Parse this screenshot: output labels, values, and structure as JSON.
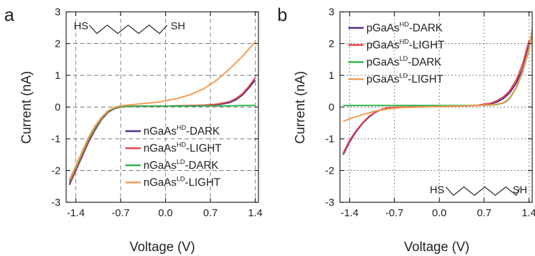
{
  "panels": [
    {
      "letter": "a",
      "molecule": {
        "left": "HS",
        "right": "SH"
      },
      "chart_data": {
        "type": "line",
        "xlabel": "Voltage (V)",
        "ylabel": "Current (nA)",
        "xlim": [
          -1.55,
          1.45
        ],
        "ylim": [
          -3,
          3
        ],
        "xticks": [
          -1.4,
          -0.7,
          0.0,
          0.7,
          1.4
        ],
        "xtick_labels": [
          "-1.4",
          "-0.7",
          "0.0",
          "0.7",
          "1.4"
        ],
        "yticks": [
          -3,
          -2,
          -1,
          0,
          1,
          2,
          3
        ],
        "ytick_labels": [
          "-3",
          "-2",
          "-1",
          "0",
          "1",
          "2",
          "3"
        ],
        "grid": "dashed at ticks",
        "legend_position": "bottom-right",
        "series": [
          {
            "name": "nGaAsHD-DARK",
            "base": "nGaAs",
            "sup": "HD",
            "tail": "-DARK",
            "color": "#4b2c8c",
            "x": [
              -1.5,
              -1.4,
              -1.3,
              -1.2,
              -1.1,
              -1.0,
              -0.9,
              -0.8,
              -0.7,
              -0.6,
              -0.4,
              -0.2,
              0.0,
              0.2,
              0.4,
              0.6,
              0.8,
              1.0,
              1.1,
              1.2,
              1.3,
              1.4
            ],
            "y": [
              -2.45,
              -2.0,
              -1.55,
              -1.1,
              -0.72,
              -0.4,
              -0.17,
              -0.05,
              0.0,
              0.02,
              0.03,
              0.03,
              0.03,
              0.04,
              0.04,
              0.05,
              0.07,
              0.14,
              0.23,
              0.38,
              0.6,
              0.85
            ]
          },
          {
            "name": "nGaAsHD-LIGHT",
            "base": "nGaAs",
            "sup": "HD",
            "tail": "-LIGHT",
            "color": "#e8454a",
            "x": [
              -1.5,
              -1.4,
              -1.3,
              -1.2,
              -1.1,
              -1.0,
              -0.9,
              -0.8,
              -0.7,
              -0.6,
              -0.4,
              -0.2,
              0.0,
              0.2,
              0.4,
              0.6,
              0.8,
              1.0,
              1.1,
              1.2,
              1.3,
              1.4
            ],
            "y": [
              -2.4,
              -1.95,
              -1.5,
              -1.05,
              -0.68,
              -0.38,
              -0.15,
              -0.04,
              0.0,
              0.02,
              0.03,
              0.03,
              0.03,
              0.04,
              0.05,
              0.06,
              0.09,
              0.17,
              0.27,
              0.42,
              0.65,
              0.92
            ]
          },
          {
            "name": "nGaAsLD-DARK",
            "base": "nGaAs",
            "sup": "LD",
            "tail": "-DARK",
            "color": "#2eb34a",
            "x": [
              -1.5,
              -1.4,
              -1.3,
              -1.2,
              -1.1,
              -1.0,
              -0.9,
              -0.8,
              -0.7,
              -0.6,
              -0.4,
              -0.2,
              0.0,
              0.2,
              0.4,
              0.6,
              0.8,
              1.0,
              1.2,
              1.4
            ],
            "y": [
              -2.35,
              -1.9,
              -1.45,
              -1.0,
              -0.65,
              -0.36,
              -0.14,
              -0.03,
              0.01,
              0.02,
              0.03,
              0.03,
              0.03,
              0.03,
              0.03,
              0.04,
              0.04,
              0.04,
              0.05,
              0.05
            ]
          },
          {
            "name": "nGaAsLD-LIGHT",
            "base": "nGaAs",
            "sup": "LD",
            "tail": "-LIGHT",
            "color": "#f49a55",
            "x": [
              -1.5,
              -1.4,
              -1.3,
              -1.2,
              -1.1,
              -1.0,
              -0.9,
              -0.8,
              -0.7,
              -0.5,
              -0.3,
              -0.1,
              0.0,
              0.2,
              0.4,
              0.6,
              0.8,
              1.0,
              1.2,
              1.4
            ],
            "y": [
              -2.3,
              -1.85,
              -1.4,
              -0.95,
              -0.6,
              -0.32,
              -0.12,
              -0.01,
              0.04,
              0.08,
              0.12,
              0.16,
              0.2,
              0.28,
              0.4,
              0.58,
              0.85,
              1.2,
              1.6,
              2.05
            ]
          }
        ]
      }
    },
    {
      "letter": "b",
      "molecule": {
        "left": "HS",
        "right": "SH"
      },
      "chart_data": {
        "type": "line",
        "xlabel": "Voltage (V)",
        "ylabel": "Current (nA)",
        "xlim": [
          -1.55,
          1.45
        ],
        "ylim": [
          -3,
          3
        ],
        "xticks": [
          -1.4,
          -0.7,
          0.0,
          0.7,
          1.4
        ],
        "xtick_labels": [
          "-1.4",
          "-0.7",
          "0.0",
          "0.7",
          "1.4"
        ],
        "yticks": [
          -3,
          -2,
          -1,
          0,
          1,
          2,
          3
        ],
        "ytick_labels": [
          "-3",
          "-2",
          "-1",
          "0",
          "1",
          "2",
          "3"
        ],
        "grid": "dotted at ticks",
        "legend_position": "top-left",
        "series": [
          {
            "name": "pGaAsHD-DARK",
            "base": "pGaAs",
            "sup": "HD",
            "tail": "-DARK",
            "color": "#4b2c8c",
            "x": [
              -1.5,
              -1.4,
              -1.3,
              -1.2,
              -1.1,
              -1.0,
              -0.9,
              -0.8,
              -0.7,
              -0.5,
              -0.2,
              0.0,
              0.3,
              0.6,
              0.8,
              0.9,
              1.0,
              1.1,
              1.2,
              1.3,
              1.4
            ],
            "y": [
              -1.5,
              -1.1,
              -0.78,
              -0.52,
              -0.32,
              -0.17,
              -0.08,
              -0.03,
              -0.01,
              0.0,
              0.01,
              0.02,
              0.03,
              0.05,
              0.1,
              0.16,
              0.27,
              0.45,
              0.75,
              1.2,
              1.95
            ]
          },
          {
            "name": "pGaAsHD-LIGHT",
            "base": "pGaAs",
            "sup": "HD",
            "tail": "-LIGHT",
            "color": "#e8454a",
            "x": [
              -1.5,
              -1.4,
              -1.3,
              -1.2,
              -1.1,
              -1.0,
              -0.9,
              -0.8,
              -0.7,
              -0.5,
              -0.2,
              0.0,
              0.3,
              0.6,
              0.8,
              0.9,
              1.0,
              1.1,
              1.2,
              1.3,
              1.4
            ],
            "y": [
              -1.45,
              -1.05,
              -0.75,
              -0.5,
              -0.3,
              -0.16,
              -0.07,
              -0.02,
              -0.01,
              0.0,
              0.01,
              0.02,
              0.03,
              0.06,
              0.12,
              0.2,
              0.32,
              0.52,
              0.85,
              1.35,
              2.1
            ]
          },
          {
            "name": "pGaAsLD-DARK",
            "base": "pGaAs",
            "sup": "LD",
            "tail": "-DARK",
            "color": "#2eb34a",
            "x": [
              -1.5,
              -1.2,
              -0.9,
              -0.6,
              -0.3,
              0.0,
              0.3,
              0.6,
              0.8,
              0.9,
              1.0,
              1.05,
              1.1,
              1.2,
              1.3,
              1.4,
              1.45
            ],
            "y": [
              0.05,
              0.05,
              0.05,
              0.05,
              0.05,
              0.05,
              0.05,
              0.05,
              0.06,
              0.08,
              0.13,
              0.18,
              0.28,
              0.6,
              1.1,
              1.8,
              2.35
            ]
          },
          {
            "name": "pGaAsLD-LIGHT",
            "base": "pGaAs",
            "sup": "LD",
            "tail": "-LIGHT",
            "color": "#f49a55",
            "x": [
              -1.5,
              -1.4,
              -1.2,
              -1.0,
              -0.8,
              -0.6,
              -0.3,
              0.0,
              0.3,
              0.6,
              0.8,
              0.9,
              1.0,
              1.05,
              1.1,
              1.2,
              1.3,
              1.4,
              1.45
            ],
            "y": [
              -0.45,
              -0.37,
              -0.24,
              -0.13,
              -0.06,
              -0.02,
              0.0,
              0.02,
              0.03,
              0.05,
              0.07,
              0.09,
              0.14,
              0.2,
              0.3,
              0.62,
              1.12,
              1.85,
              2.45
            ]
          }
        ]
      }
    }
  ]
}
